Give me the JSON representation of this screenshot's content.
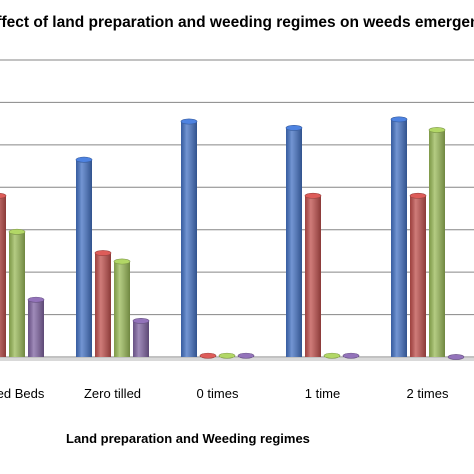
{
  "chart_data": {
    "type": "bar",
    "title": "Effect of land preparation and weeding regimes on weeds emergence for combined",
    "xlabel": "Land preparation and Weeding regimes",
    "ylabel": "",
    "categories": [
      "Raised Beds",
      "Zero tilled",
      "0 times",
      "1 time",
      "2 times"
    ],
    "ylim": [
      0,
      7
    ],
    "grid": true,
    "series": [
      {
        "color": "#4472C4",
        "values": [
          5.75,
          4.65,
          5.55,
          5.4,
          5.6
        ]
      },
      {
        "color": "#C0504D",
        "values": [
          3.8,
          2.45,
          0.03,
          3.8,
          3.8
        ]
      },
      {
        "color": "#9BBB59",
        "values": [
          2.95,
          2.25,
          0.03,
          0.03,
          5.35
        ]
      },
      {
        "color": "#8064A2",
        "values": [
          1.35,
          0.85,
          0.03,
          0.03,
          0.0
        ]
      }
    ]
  }
}
